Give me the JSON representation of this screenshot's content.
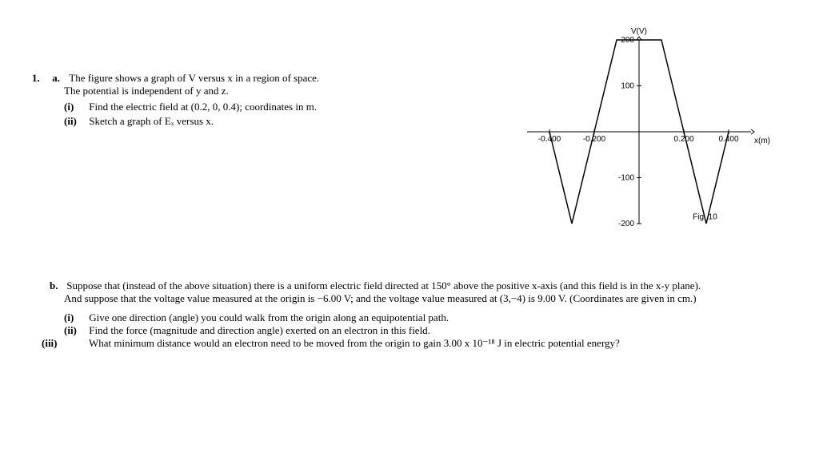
{
  "q1": {
    "number": "1.",
    "a": {
      "label": "a.",
      "text1": "The figure shows a graph of V versus x in a region of space.",
      "text2": "The potential is independent of y and z.",
      "i": {
        "roman": "(i)",
        "text": "Find the electric field at (0.2, 0, 0.4); coordinates in m."
      },
      "ii": {
        "roman": "(ii)",
        "text": "Sketch a graph of Eₓ versus x."
      }
    },
    "b": {
      "label": "b.",
      "p1": "Suppose that (instead of the above situation) there is a uniform electric field directed at 150° above the positive x-axis (and this field is in the x-y plane). And suppose that the voltage value measured at the origin is −6.00 V; and the voltage value measured at (3,−4) is 9.00 V. (Coordinates are given in cm.)",
      "i": {
        "roman": "(i)",
        "text": "Give one direction (angle) you could walk from the origin along an equipotential path."
      },
      "ii": {
        "roman": "(ii)",
        "text": "Find the force (magnitude and direction angle) exerted on an electron in this field."
      },
      "iii": {
        "roman": "(iii)",
        "text": "What minimum distance would an electron need to be moved from the origin to gain 3.00 x 10⁻¹⁸ J in electric potential energy?"
      }
    }
  },
  "chart": {
    "type": "line",
    "title_y": "V(V)",
    "title_x": "x(m)",
    "fig_label": "Fig. 10",
    "xlim": [
      -0.5,
      0.5
    ],
    "ylim": [
      -200,
      200
    ],
    "xticks": [
      {
        "v": -0.4,
        "label": "-0.400"
      },
      {
        "v": -0.2,
        "label": "-0.200"
      },
      {
        "v": 0.2,
        "label": "0.200"
      },
      {
        "v": 0.4,
        "label": "0.400"
      }
    ],
    "yticks": [
      {
        "v": 200,
        "label": "200"
      },
      {
        "v": 100,
        "label": "100"
      },
      {
        "v": -100,
        "label": "-100"
      },
      {
        "v": -200,
        "label": "-200"
      }
    ],
    "points": [
      {
        "x": -0.4,
        "y": 0
      },
      {
        "x": -0.3,
        "y": -200
      },
      {
        "x": -0.1,
        "y": 200
      },
      {
        "x": 0.1,
        "y": 200
      },
      {
        "x": 0.3,
        "y": -200
      },
      {
        "x": 0.4,
        "y": 0
      }
    ],
    "colors": {
      "axis": "#000000",
      "line": "#000000",
      "text": "#000000",
      "bg": "#ffffff"
    },
    "line_width": 1.5,
    "font_size": 10
  }
}
